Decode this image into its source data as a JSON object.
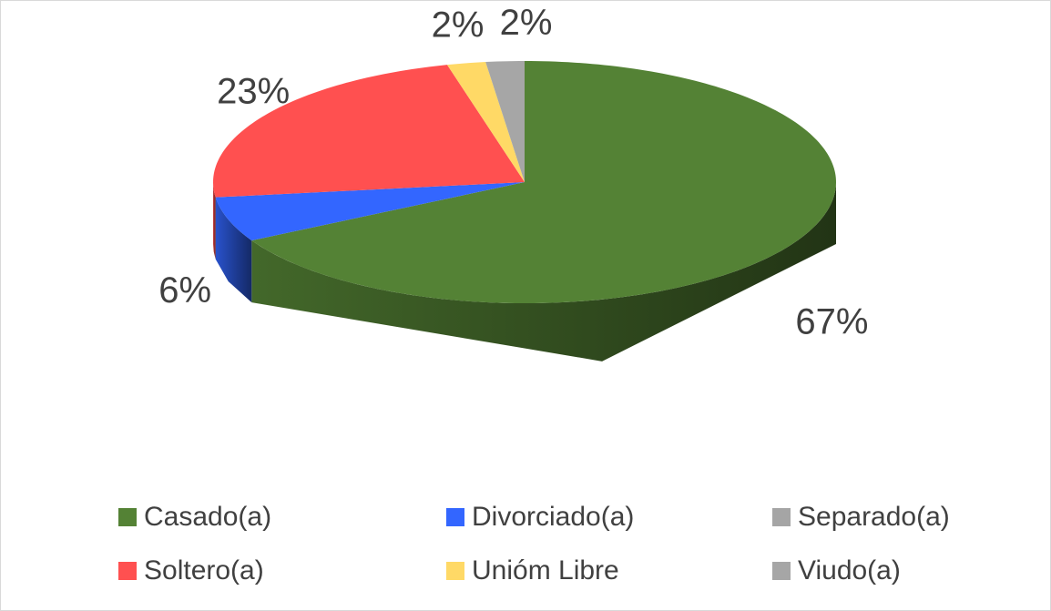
{
  "chart_data": {
    "type": "pie3d",
    "categories": [
      "Casado(a)",
      "Divorciado(a)",
      "Separado(a)",
      "Soltero(a)",
      "Unióm Libre",
      "Viudo(a)"
    ],
    "values": [
      67,
      6,
      0,
      23,
      2,
      2
    ],
    "value_labels": [
      "67%",
      "6%",
      null,
      "23%",
      "2%",
      "2%"
    ],
    "colors": [
      "#548235",
      "#3366ff",
      "#a5a5a5",
      "#ff5050",
      "#ffd966",
      "#a6a6a6"
    ],
    "legend": "bottom"
  }
}
